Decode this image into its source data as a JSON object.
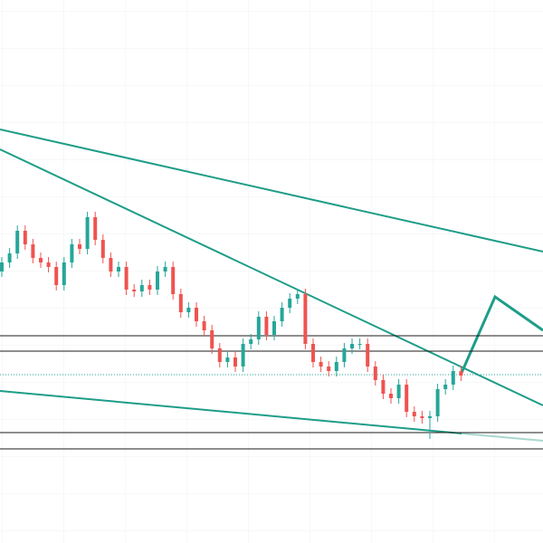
{
  "chart_data": {
    "type": "candlestick",
    "ylim": [
      0,
      600
    ],
    "up_color": "#26a69a",
    "down_color": "#ef5350",
    "open": [
      300,
      310,
      320,
      345,
      330,
      315,
      310,
      305,
      285,
      310,
      330,
      325,
      360,
      335,
      315,
      300,
      305,
      280,
      278,
      285,
      280,
      300,
      305,
      275,
      255,
      260,
      245,
      235,
      215,
      200,
      205,
      195,
      220,
      225,
      250,
      230,
      245,
      260,
      270,
      275,
      220,
      200,
      195,
      190,
      200,
      215,
      220,
      220,
      195,
      180,
      165,
      160,
      175,
      145,
      140,
      138,
      140,
      170,
      175,
      190
    ],
    "high": [
      316,
      326,
      351,
      351,
      336,
      321,
      316,
      311,
      316,
      336,
      336,
      366,
      366,
      341,
      321,
      311,
      311,
      286,
      291,
      291,
      306,
      311,
      311,
      281,
      266,
      266,
      251,
      241,
      221,
      211,
      211,
      226,
      231,
      256,
      256,
      251,
      266,
      276,
      281,
      281,
      226,
      206,
      201,
      206,
      221,
      226,
      226,
      226,
      201,
      186,
      171,
      181,
      181,
      151,
      146,
      146,
      176,
      181,
      196,
      196
    ],
    "low": [
      294,
      304,
      314,
      324,
      309,
      304,
      299,
      279,
      279,
      304,
      319,
      319,
      329,
      309,
      294,
      294,
      274,
      272,
      272,
      274,
      274,
      294,
      269,
      249,
      249,
      239,
      229,
      209,
      194,
      194,
      189,
      189,
      214,
      219,
      224,
      224,
      239,
      254,
      264,
      214,
      194,
      189,
      184,
      184,
      194,
      209,
      214,
      189,
      174,
      159,
      154,
      154,
      139,
      134,
      132,
      115,
      134,
      164,
      169,
      179
    ],
    "close": [
      310,
      320,
      345,
      330,
      315,
      310,
      305,
      285,
      310,
      330,
      325,
      360,
      335,
      315,
      300,
      305,
      280,
      278,
      285,
      280,
      300,
      305,
      275,
      255,
      260,
      245,
      235,
      215,
      200,
      205,
      195,
      220,
      225,
      250,
      230,
      245,
      260,
      270,
      275,
      220,
      200,
      195,
      190,
      200,
      215,
      220,
      220,
      195,
      180,
      165,
      160,
      175,
      145,
      140,
      138,
      140,
      170,
      175,
      190,
      185
    ]
  }
}
